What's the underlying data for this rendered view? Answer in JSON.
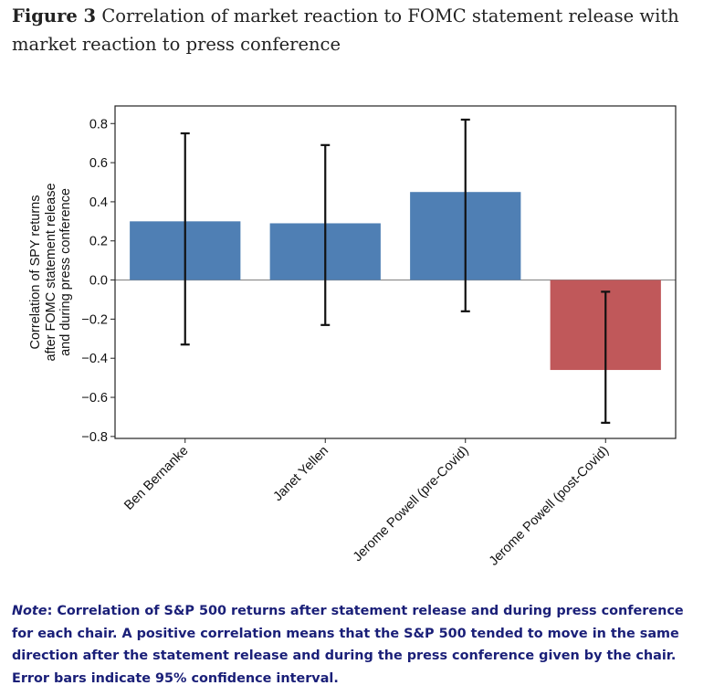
{
  "caption": {
    "label": "Figure 3",
    "text": "Correlation of market reaction to FOMC statement release with market reaction to press conference"
  },
  "chart_data": {
    "type": "bar",
    "categories": [
      "Ben Bernanke",
      "Janet Yellen",
      "Jerome Powell (pre-Covid)",
      "Jerome Powell (post-Covid)"
    ],
    "values": [
      0.3,
      0.29,
      0.45,
      -0.46
    ],
    "error_low": [
      -0.33,
      -0.23,
      -0.16,
      -0.73
    ],
    "error_high": [
      0.75,
      0.69,
      0.82,
      -0.06
    ],
    "bar_colors": [
      "#4f7fb4",
      "#4f7fb4",
      "#4f7fb4",
      "#c0585a"
    ],
    "ylabel_lines": [
      "Correlation of SPY returns",
      "after FOMC statement release",
      "and during press conference"
    ],
    "yticks": [
      0.8,
      0.6,
      0.4,
      0.2,
      0.0,
      -0.2,
      -0.4,
      -0.6,
      -0.8
    ],
    "ytick_labels": [
      "0.8",
      "0.6",
      "0.4",
      "0.2",
      "0.0",
      "−0.2",
      "−0.4",
      "−0.6",
      "−0.8"
    ],
    "ylim": [
      -0.81,
      0.89
    ],
    "grid": false
  },
  "note": {
    "label": "Note",
    "text": ": Correlation of S&P 500 returns after statement release and during press conference for each chair. A positive correlation means that the S&P 500 tended to move in the same direction after the statement release and during the press conference given by the chair. Error bars indicate 95% confidence interval."
  }
}
